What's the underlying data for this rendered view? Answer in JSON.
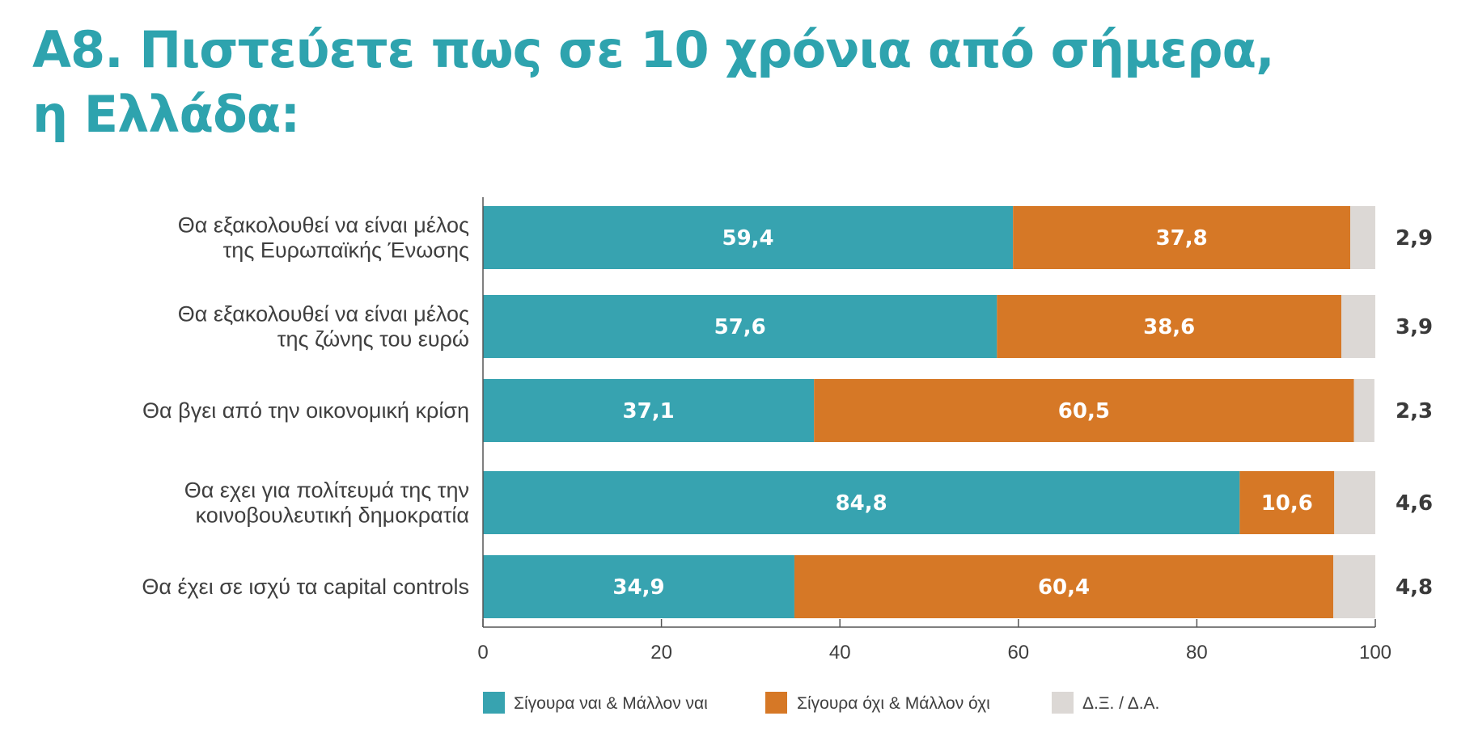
{
  "chart_data": {
    "type": "bar",
    "orientation": "horizontal",
    "stacked": true,
    "title_lines": [
      "Α8. Πιστεύετε πως σε 10 χρόνια από σήμερα,",
      "η Ελλάδα:"
    ],
    "categories": [
      [
        "Θα εξακολουθεί να είναι μέλος",
        "της Ευρωπαϊκής Ένωσης"
      ],
      [
        "Θα εξακολουθεί να είναι μέλος",
        "της ζώνης του ευρώ"
      ],
      [
        "Θα βγει από την οικονομική κρίση"
      ],
      [
        "Θα εχει για πολίτευμά της την",
        "κοινοβουλευτική δημοκρατία"
      ],
      [
        "Θα έχει σε ισχύ τα capital controls"
      ]
    ],
    "series": [
      {
        "name": "Σίγουρα ναι & Μάλλον ναι",
        "color": "#37a3b0",
        "values": [
          59.4,
          57.6,
          37.1,
          84.8,
          34.9
        ],
        "labels": [
          "59,4",
          "57,6",
          "37,1",
          "84,8",
          "34,9"
        ]
      },
      {
        "name": "Σίγουρα όχι & Μάλλον όχι",
        "color": "#d67826",
        "values": [
          37.8,
          38.6,
          60.5,
          10.6,
          60.4
        ],
        "labels": [
          "37,8",
          "38,6",
          "60,5",
          "10,6",
          "60,4"
        ]
      },
      {
        "name": "Δ.Ξ. / Δ.Α.",
        "color": "#dcd8d5",
        "values": [
          2.9,
          3.9,
          2.3,
          4.6,
          4.8
        ],
        "labels": [
          "2,9",
          "3,9",
          "2,3",
          "4,6",
          "4,8"
        ]
      }
    ],
    "xlim": [
      0,
      100
    ],
    "xticks": [
      0,
      20,
      40,
      60,
      80,
      100
    ],
    "xtick_labels": [
      "0",
      "20",
      "40",
      "60",
      "80",
      "100"
    ],
    "grid": false,
    "legend_position": "bottom",
    "title_color": "#2ea3ae"
  }
}
